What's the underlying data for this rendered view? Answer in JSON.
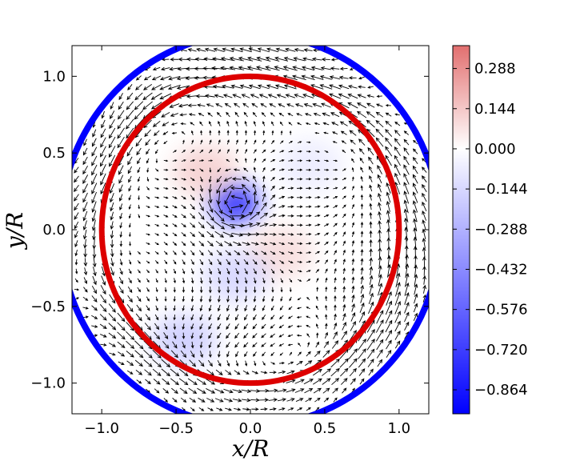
{
  "chart_data": {
    "type": "vector-field",
    "title": "",
    "xlabel": "x/R",
    "ylabel": "y/R",
    "xlim": [
      -1.2,
      1.2
    ],
    "ylim": [
      -1.2,
      1.2
    ],
    "xticks": [
      -1.0,
      -0.5,
      0.0,
      0.5,
      1.0
    ],
    "xtick_labels": [
      "−1.0",
      "−0.5",
      "0.0",
      "0.5",
      "1.0"
    ],
    "yticks": [
      -1.0,
      -0.5,
      0.0,
      0.5,
      1.0
    ],
    "ytick_labels": [
      "−1.0",
      "−0.5",
      "0.0",
      "0.5",
      "1.0"
    ],
    "circles": [
      {
        "center": [
          0,
          0
        ],
        "radius": 1.0,
        "color": "#dd0000"
      },
      {
        "center": [
          0,
          0
        ],
        "radius": 1.28,
        "color": "#0000ff"
      }
    ],
    "colorbar": {
      "cmap": "bwr",
      "vmin": -0.95,
      "vmax": 0.37,
      "ticks": [
        0.288,
        0.144,
        0.0,
        -0.144,
        -0.288,
        -0.432,
        -0.576,
        -0.72,
        -0.864
      ],
      "tick_labels": [
        "0.288",
        "0.144",
        "0.000",
        "−0.144",
        "−0.288",
        "−0.432",
        "−0.576",
        "−0.720",
        "−0.864"
      ]
    },
    "field_features": [
      {
        "kind": "vortex",
        "center": [
          -0.1,
          0.17
        ],
        "value": -0.864,
        "sense": "counterclockwise"
      },
      {
        "kind": "positive-region",
        "center": [
          -0.3,
          0.38
        ],
        "value": 0.2
      },
      {
        "kind": "positive-region",
        "center": [
          0.2,
          -0.15
        ],
        "value": 0.15
      },
      {
        "kind": "negative-region",
        "center": [
          -0.1,
          -0.3
        ],
        "value": -0.25
      },
      {
        "kind": "negative-region",
        "center": [
          -0.45,
          -0.72
        ],
        "value": -0.3
      },
      {
        "kind": "negative-region",
        "center": [
          0.4,
          0.42
        ],
        "value": -0.12
      }
    ]
  }
}
